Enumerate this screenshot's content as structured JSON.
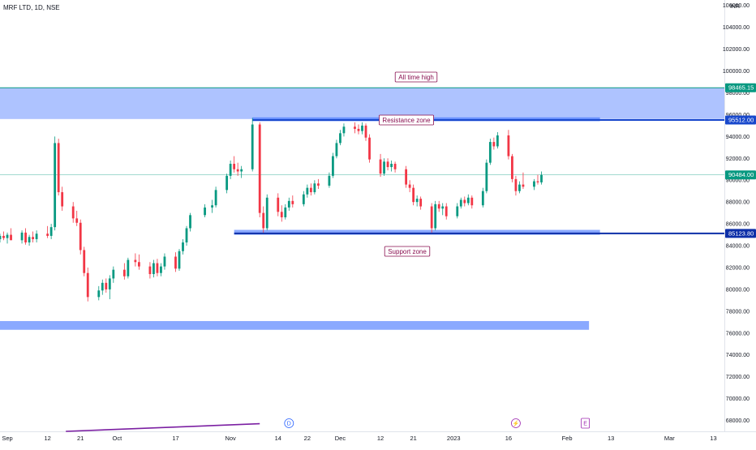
{
  "header": {
    "symbol_title": "MRF LTD, 1D, NSE",
    "currency": "INR"
  },
  "colors": {
    "up": "#089981",
    "down": "#f23645",
    "zone_fill": "#2962ff",
    "support_line": "#0d2fa8",
    "resistance_line": "#1848cc",
    "last_price": "#089981",
    "ath_line": "#089981",
    "trend_line": "#7b1fa2"
  },
  "annotations": {
    "all_time_high": "All time high",
    "resistance_zone": "Resistance zone",
    "support_zone": "Support zone"
  },
  "price_labels": {
    "ath": "98465.15",
    "resistance": "95512.00",
    "last": "90484.00",
    "support": "85123.80"
  },
  "event_markers": [
    {
      "letter": "D",
      "icon": "dividend-icon",
      "date": "2022-11-17"
    },
    {
      "letter": "⚡",
      "icon": "split-icon",
      "date": "2023-01-18"
    },
    {
      "letter": "E",
      "icon": "earnings-icon",
      "date": "2023-02-06"
    }
  ],
  "chart_data": {
    "type": "candlestick",
    "title": "MRF LTD, 1D, NSE",
    "y_unit": "INR",
    "ylim": [
      67000,
      106500
    ],
    "x_start": "2022-08-30",
    "x_end": "2023-03-16",
    "grid": false,
    "y_ticks": [
      "106000.00",
      "104000.00",
      "102000.00",
      "100000.00",
      "98000.00",
      "96000.00",
      "94000.00",
      "92000.00",
      "90000.00",
      "88000.00",
      "86000.00",
      "84000.00",
      "82000.00",
      "80000.00",
      "78000.00",
      "76000.00",
      "74000.00",
      "72000.00",
      "70000.00",
      "68000.00"
    ],
    "x_ticks": [
      {
        "label": "Sep",
        "date": "2022-09-01"
      },
      {
        "label": "12",
        "date": "2022-09-12"
      },
      {
        "label": "21",
        "date": "2022-09-21"
      },
      {
        "label": "Oct",
        "date": "2022-10-01"
      },
      {
        "label": "17",
        "date": "2022-10-17"
      },
      {
        "label": "Nov",
        "date": "2022-11-01"
      },
      {
        "label": "14",
        "date": "2022-11-14"
      },
      {
        "label": "22",
        "date": "2022-11-22"
      },
      {
        "label": "Dec",
        "date": "2022-12-01"
      },
      {
        "label": "12",
        "date": "2022-12-12"
      },
      {
        "label": "21",
        "date": "2022-12-21"
      },
      {
        "label": "2023",
        "date": "2023-01-01"
      },
      {
        "label": "16",
        "date": "2023-01-16"
      },
      {
        "label": "Feb",
        "date": "2023-02-01"
      },
      {
        "label": "13",
        "date": "2023-02-13"
      },
      {
        "label": "Mar",
        "date": "2023-03-01"
      },
      {
        "label": "13",
        "date": "2023-03-13"
      }
    ],
    "zones": [
      {
        "name": "All time high",
        "from": 95600,
        "to": 98465.15,
        "start": "2022-08-30",
        "end": "2023-03-16"
      },
      {
        "name": "Resistance zone",
        "from": 95400,
        "to": 95750,
        "start": "2022-11-07",
        "end": "2023-02-10"
      },
      {
        "name": "Support zone",
        "from": 85000,
        "to": 85450,
        "start": "2022-11-02",
        "end": "2023-02-10"
      },
      {
        "name": "",
        "from": 76300,
        "to": 77100,
        "start": "2022-08-30",
        "end": "2023-02-07"
      }
    ],
    "horizontal_lines": [
      {
        "name": "Resistance",
        "value": 95512.0,
        "start": "2022-11-07",
        "end": "2023-03-16"
      },
      {
        "name": "Support",
        "value": 85123.8,
        "start": "2022-11-02",
        "end": "2023-03-16"
      },
      {
        "name": "All time high",
        "value": 98465.15,
        "start": "2022-08-30",
        "end": "2023-03-16"
      }
    ],
    "last_price": 90484.0,
    "trend_line": {
      "from_date": "2022-09-17",
      "from_value": 67000,
      "to_date": "2022-11-09",
      "to_value": 67700
    },
    "candles": [
      {
        "date": "2022-08-30",
        "o": 84600,
        "h": 85100,
        "l": 84300,
        "c": 84900
      },
      {
        "date": "2022-08-31",
        "o": 84900,
        "h": 85300,
        "l": 84500,
        "c": 84700
      },
      {
        "date": "2022-09-01",
        "o": 84700,
        "h": 85200,
        "l": 84200,
        "c": 85000
      },
      {
        "date": "2022-09-02",
        "o": 85000,
        "h": 85600,
        "l": 84600,
        "c": 84500
      },
      {
        "date": "2022-09-05",
        "o": 84500,
        "h": 85400,
        "l": 84200,
        "c": 85200
      },
      {
        "date": "2022-09-06",
        "o": 85200,
        "h": 85600,
        "l": 84100,
        "c": 84300
      },
      {
        "date": "2022-09-07",
        "o": 84300,
        "h": 85000,
        "l": 84000,
        "c": 84800
      },
      {
        "date": "2022-09-08",
        "o": 84800,
        "h": 85300,
        "l": 84300,
        "c": 84600
      },
      {
        "date": "2022-09-09",
        "o": 84600,
        "h": 85400,
        "l": 84300,
        "c": 85100
      },
      {
        "date": "2022-09-12",
        "o": 85100,
        "h": 85800,
        "l": 84700,
        "c": 84900
      },
      {
        "date": "2022-09-13",
        "o": 84900,
        "h": 86000,
        "l": 84600,
        "c": 85700
      },
      {
        "date": "2022-09-14",
        "o": 85700,
        "h": 94000,
        "l": 85400,
        "c": 93400
      },
      {
        "date": "2022-09-15",
        "o": 93400,
        "h": 93800,
        "l": 88600,
        "c": 88900
      },
      {
        "date": "2022-09-16",
        "o": 88900,
        "h": 89400,
        "l": 87200,
        "c": 87600
      },
      {
        "date": "2022-09-19",
        "o": 87600,
        "h": 88000,
        "l": 86100,
        "c": 86500
      },
      {
        "date": "2022-09-20",
        "o": 86500,
        "h": 87200,
        "l": 85800,
        "c": 86100
      },
      {
        "date": "2022-09-21",
        "o": 86100,
        "h": 86400,
        "l": 83200,
        "c": 83600
      },
      {
        "date": "2022-09-22",
        "o": 83600,
        "h": 83900,
        "l": 81200,
        "c": 81500
      },
      {
        "date": "2022-09-23",
        "o": 81500,
        "h": 82000,
        "l": 78900,
        "c": 79300
      },
      {
        "date": "2022-09-26",
        "o": 79300,
        "h": 80300,
        "l": 79000,
        "c": 79900
      },
      {
        "date": "2022-09-27",
        "o": 79900,
        "h": 80900,
        "l": 79500,
        "c": 80600
      },
      {
        "date": "2022-09-28",
        "o": 80600,
        "h": 81000,
        "l": 79700,
        "c": 80000
      },
      {
        "date": "2022-09-29",
        "o": 80000,
        "h": 81300,
        "l": 79100,
        "c": 81000
      },
      {
        "date": "2022-09-30",
        "o": 81000,
        "h": 82100,
        "l": 80600,
        "c": 81800
      },
      {
        "date": "2022-10-03",
        "o": 81800,
        "h": 82400,
        "l": 80900,
        "c": 81200
      },
      {
        "date": "2022-10-04",
        "o": 81200,
        "h": 82900,
        "l": 81000,
        "c": 82700
      },
      {
        "date": "2022-10-06",
        "o": 82700,
        "h": 83300,
        "l": 82100,
        "c": 82500
      },
      {
        "date": "2022-10-07",
        "o": 82500,
        "h": 83200,
        "l": 81800,
        "c": 82100
      },
      {
        "date": "2022-10-10",
        "o": 82100,
        "h": 82500,
        "l": 81000,
        "c": 81400
      },
      {
        "date": "2022-10-11",
        "o": 81400,
        "h": 82700,
        "l": 81100,
        "c": 82400
      },
      {
        "date": "2022-10-12",
        "o": 82400,
        "h": 82800,
        "l": 81200,
        "c": 81500
      },
      {
        "date": "2022-10-13",
        "o": 81500,
        "h": 82400,
        "l": 81200,
        "c": 82100
      },
      {
        "date": "2022-10-14",
        "o": 82100,
        "h": 83300,
        "l": 81800,
        "c": 83000
      },
      {
        "date": "2022-10-17",
        "o": 83000,
        "h": 83400,
        "l": 81600,
        "c": 81900
      },
      {
        "date": "2022-10-18",
        "o": 81900,
        "h": 83700,
        "l": 81700,
        "c": 83500
      },
      {
        "date": "2022-10-19",
        "o": 83500,
        "h": 84600,
        "l": 83200,
        "c": 84300
      },
      {
        "date": "2022-10-20",
        "o": 84300,
        "h": 85800,
        "l": 84000,
        "c": 85600
      },
      {
        "date": "2022-10-21",
        "o": 85600,
        "h": 87000,
        "l": 85300,
        "c": 86800
      },
      {
        "date": "2022-10-25",
        "o": 86800,
        "h": 87800,
        "l": 86600,
        "c": 87500
      },
      {
        "date": "2022-10-27",
        "o": 87500,
        "h": 88200,
        "l": 87000,
        "c": 87700
      },
      {
        "date": "2022-10-28",
        "o": 87700,
        "h": 89400,
        "l": 87500,
        "c": 89100
      },
      {
        "date": "2022-10-31",
        "o": 89100,
        "h": 90600,
        "l": 88800,
        "c": 90400
      },
      {
        "date": "2022-11-01",
        "o": 90400,
        "h": 91800,
        "l": 90100,
        "c": 91500
      },
      {
        "date": "2022-11-02",
        "o": 91500,
        "h": 92200,
        "l": 90700,
        "c": 91000
      },
      {
        "date": "2022-11-03",
        "o": 91000,
        "h": 91600,
        "l": 90400,
        "c": 90800
      },
      {
        "date": "2022-11-04",
        "o": 90800,
        "h": 91300,
        "l": 90200,
        "c": 91000
      },
      {
        "date": "2022-11-07",
        "o": 91000,
        "h": 95700,
        "l": 90800,
        "c": 95100
      },
      {
        "date": "2022-11-09",
        "o": 95100,
        "h": 95300,
        "l": 86600,
        "c": 87000
      },
      {
        "date": "2022-11-10",
        "o": 87000,
        "h": 87600,
        "l": 85200,
        "c": 85600
      },
      {
        "date": "2022-11-11",
        "o": 85600,
        "h": 88700,
        "l": 85400,
        "c": 88400
      },
      {
        "date": "2022-11-14",
        "o": 88400,
        "h": 88800,
        "l": 86700,
        "c": 87100
      },
      {
        "date": "2022-11-15",
        "o": 87100,
        "h": 87700,
        "l": 86200,
        "c": 86600
      },
      {
        "date": "2022-11-16",
        "o": 86600,
        "h": 87800,
        "l": 86400,
        "c": 87500
      },
      {
        "date": "2022-11-17",
        "o": 87500,
        "h": 88400,
        "l": 87200,
        "c": 88100
      },
      {
        "date": "2022-11-18",
        "o": 88100,
        "h": 88600,
        "l": 87500,
        "c": 87800
      },
      {
        "date": "2022-11-21",
        "o": 87800,
        "h": 89000,
        "l": 87600,
        "c": 88700
      },
      {
        "date": "2022-11-22",
        "o": 88700,
        "h": 89600,
        "l": 88400,
        "c": 89300
      },
      {
        "date": "2022-11-23",
        "o": 89300,
        "h": 89700,
        "l": 88600,
        "c": 88900
      },
      {
        "date": "2022-11-24",
        "o": 88900,
        "h": 90000,
        "l": 88700,
        "c": 89700
      },
      {
        "date": "2022-11-25",
        "o": 89700,
        "h": 90100,
        "l": 89200,
        "c": 89500
      },
      {
        "date": "2022-11-28",
        "o": 89500,
        "h": 90700,
        "l": 89300,
        "c": 90400
      },
      {
        "date": "2022-11-29",
        "o": 90400,
        "h": 92500,
        "l": 90200,
        "c": 92200
      },
      {
        "date": "2022-11-30",
        "o": 92200,
        "h": 93700,
        "l": 92000,
        "c": 93400
      },
      {
        "date": "2022-12-01",
        "o": 93400,
        "h": 94600,
        "l": 93200,
        "c": 94300
      },
      {
        "date": "2022-12-02",
        "o": 94300,
        "h": 95200,
        "l": 94000,
        "c": 94900
      },
      {
        "date": "2022-12-05",
        "o": 94900,
        "h": 95300,
        "l": 94300,
        "c": 94700
      },
      {
        "date": "2022-12-06",
        "o": 94700,
        "h": 95100,
        "l": 94200,
        "c": 94500
      },
      {
        "date": "2022-12-07",
        "o": 94500,
        "h": 95300,
        "l": 94200,
        "c": 95000
      },
      {
        "date": "2022-12-08",
        "o": 95000,
        "h": 95200,
        "l": 93600,
        "c": 93900
      },
      {
        "date": "2022-12-09",
        "o": 93900,
        "h": 94200,
        "l": 91600,
        "c": 91900
      },
      {
        "date": "2022-12-12",
        "o": 91900,
        "h": 92400,
        "l": 90300,
        "c": 90600
      },
      {
        "date": "2022-12-13",
        "o": 90600,
        "h": 92000,
        "l": 90400,
        "c": 91700
      },
      {
        "date": "2022-12-14",
        "o": 91700,
        "h": 92000,
        "l": 90900,
        "c": 91200
      },
      {
        "date": "2022-12-15",
        "o": 91200,
        "h": 91800,
        "l": 90800,
        "c": 91500
      },
      {
        "date": "2022-12-16",
        "o": 91500,
        "h": 91700,
        "l": 90700,
        "c": 91000
      },
      {
        "date": "2022-12-19",
        "o": 91000,
        "h": 91300,
        "l": 89300,
        "c": 89600
      },
      {
        "date": "2022-12-20",
        "o": 89600,
        "h": 90000,
        "l": 88900,
        "c": 89300
      },
      {
        "date": "2022-12-21",
        "o": 89300,
        "h": 89600,
        "l": 87700,
        "c": 88000
      },
      {
        "date": "2022-12-22",
        "o": 88000,
        "h": 88600,
        "l": 87600,
        "c": 88300
      },
      {
        "date": "2022-12-23",
        "o": 88300,
        "h": 88500,
        "l": 87300,
        "c": 87600
      },
      {
        "date": "2022-12-26",
        "o": 87600,
        "h": 87900,
        "l": 85200,
        "c": 85600
      },
      {
        "date": "2022-12-27",
        "o": 85600,
        "h": 88100,
        "l": 85400,
        "c": 87800
      },
      {
        "date": "2022-12-28",
        "o": 87800,
        "h": 88100,
        "l": 87100,
        "c": 87400
      },
      {
        "date": "2022-12-29",
        "o": 87400,
        "h": 87900,
        "l": 86800,
        "c": 87600
      },
      {
        "date": "2022-12-30",
        "o": 87600,
        "h": 87900,
        "l": 86400,
        "c": 86700
      },
      {
        "date": "2023-01-02",
        "o": 86700,
        "h": 87900,
        "l": 86500,
        "c": 87600
      },
      {
        "date": "2023-01-03",
        "o": 87600,
        "h": 88400,
        "l": 87400,
        "c": 88200
      },
      {
        "date": "2023-01-04",
        "o": 88200,
        "h": 88500,
        "l": 87600,
        "c": 87900
      },
      {
        "date": "2023-01-05",
        "o": 87900,
        "h": 88700,
        "l": 87700,
        "c": 88400
      },
      {
        "date": "2023-01-06",
        "o": 88400,
        "h": 88600,
        "l": 87400,
        "c": 87700
      },
      {
        "date": "2023-01-09",
        "o": 87700,
        "h": 89300,
        "l": 87500,
        "c": 89000
      },
      {
        "date": "2023-01-10",
        "o": 89000,
        "h": 91900,
        "l": 88800,
        "c": 91600
      },
      {
        "date": "2023-01-11",
        "o": 91600,
        "h": 93800,
        "l": 91400,
        "c": 93500
      },
      {
        "date": "2023-01-12",
        "o": 93500,
        "h": 93900,
        "l": 92800,
        "c": 93100
      },
      {
        "date": "2023-01-13",
        "o": 93100,
        "h": 94400,
        "l": 92900,
        "c": 94100
      },
      {
        "date": "2023-01-16",
        "o": 94100,
        "h": 94600,
        "l": 91900,
        "c": 92200
      },
      {
        "date": "2023-01-17",
        "o": 92200,
        "h": 92400,
        "l": 89800,
        "c": 90100
      },
      {
        "date": "2023-01-18",
        "o": 90100,
        "h": 90400,
        "l": 88600,
        "c": 89000
      },
      {
        "date": "2023-01-19",
        "o": 89000,
        "h": 89900,
        "l": 88800,
        "c": 89600
      },
      {
        "date": "2023-01-20",
        "o": 89600,
        "h": 90700,
        "l": 89200,
        "c": 89400
      },
      {
        "date": "2023-01-23",
        "o": 89400,
        "h": 90100,
        "l": 89100,
        "c": 89900
      },
      {
        "date": "2023-01-24",
        "o": 89900,
        "h": 90500,
        "l": 89600,
        "c": 89800
      },
      {
        "date": "2023-01-25",
        "o": 89800,
        "h": 90800,
        "l": 89600,
        "c": 90484
      }
    ]
  }
}
